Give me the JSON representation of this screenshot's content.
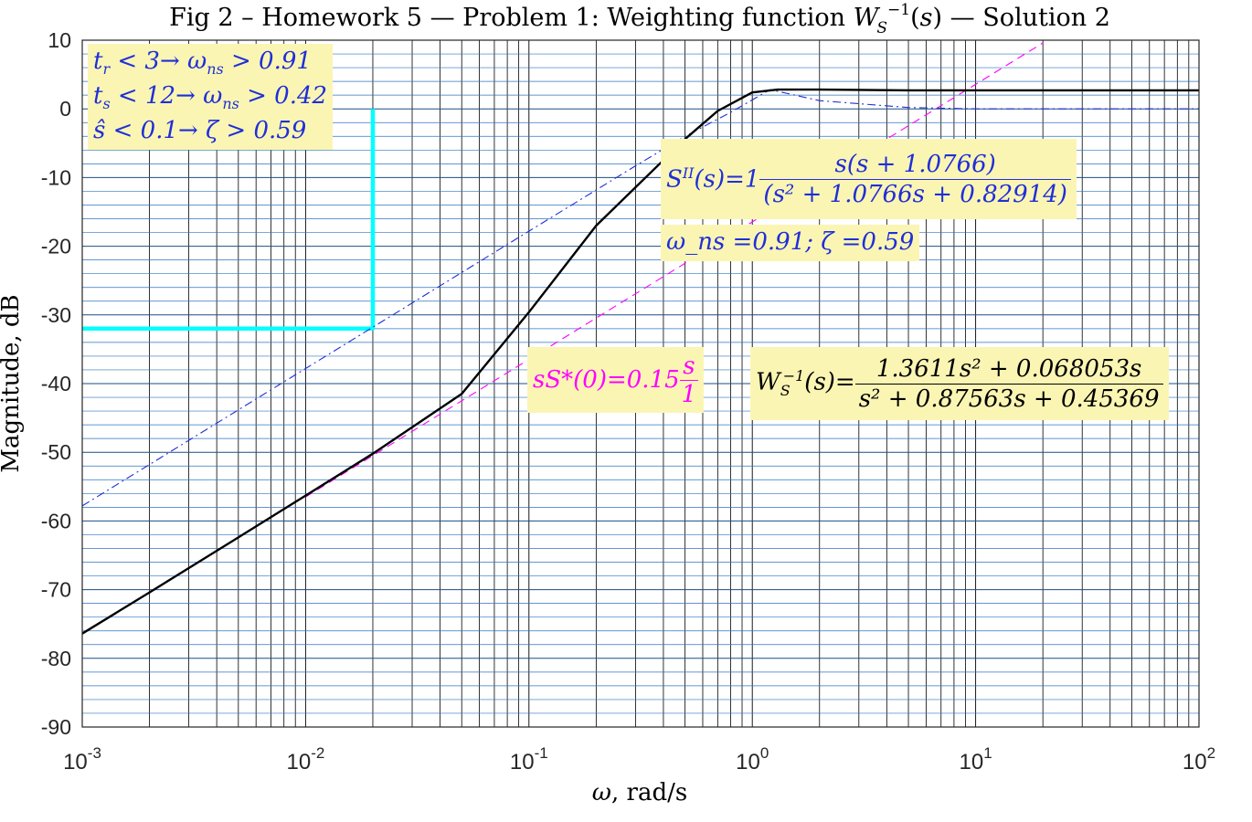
{
  "chart_data": {
    "type": "line",
    "title": "Fig 2 – Homework 5 — Problem 1: Weighting function W_S^{-1}(s) — Solution 2",
    "xlabel": "ω,  rad/s",
    "ylabel": "Magnitude, dB",
    "xscale": "log",
    "xlim": [
      0.001,
      100
    ],
    "ylim": [
      -90,
      10
    ],
    "grid": true,
    "x_tick_labels": [
      {
        "base": "10",
        "exp": "-3"
      },
      {
        "base": "10",
        "exp": "-2"
      },
      {
        "base": "10",
        "exp": "-1"
      },
      {
        "base": "10",
        "exp": "0"
      },
      {
        "base": "10",
        "exp": "1"
      },
      {
        "base": "10",
        "exp": "2"
      }
    ],
    "y_tick_labels": [
      "10",
      "0",
      "-10",
      "-20",
      "-30",
      "-40",
      "-50",
      "-60",
      "-70",
      "-80",
      "-90"
    ],
    "series": [
      {
        "style": "solid",
        "color": "#000000",
        "x": [
          0.001,
          0.002,
          0.005,
          0.01,
          0.02,
          0.05,
          0.1,
          0.2,
          0.5,
          0.7,
          1,
          1.3,
          2,
          5,
          10,
          100
        ],
        "values": [
          -76.4,
          -70.4,
          -62.4,
          -56.3,
          -50.2,
          -41.5,
          -29.6,
          -17,
          -4.4,
          -0.3,
          2.4,
          2.8,
          2.8,
          2.7,
          2.7,
          2.7
        ]
      },
      {
        "style": "dashdot",
        "color": "#1f2fd8",
        "x": [
          0.001,
          0.01,
          0.1,
          0.3,
          0.5,
          0.8,
          1.2,
          2,
          5,
          10,
          100
        ],
        "values": [
          -57.8,
          -37.8,
          -17.8,
          -8.3,
          -4.0,
          -0.5,
          2.8,
          1.2,
          0.2,
          0,
          0
        ]
      },
      {
        "style": "dashed",
        "color": "#ff00ff",
        "x": [
          0.01,
          20
        ],
        "values": [
          -56.5,
          9.6
        ]
      },
      {
        "style": "solid-thick",
        "color": "#00ffff",
        "x": [
          0.001,
          0.02,
          0.02
        ],
        "values": [
          -32,
          -32,
          0
        ]
      }
    ]
  },
  "annotations": {
    "specs": [
      "t_r < 3→ ω_ns > 0.91",
      "t_s < 12→ ω_ns > 0.42",
      "ŝ < 0.1→ ζ > 0.59"
    ],
    "sii_lhs": "S^{II}(s)=1",
    "sii_num": "s(s + 1.0766)",
    "sii_den": "(s² + 1.0766s + 0.82914)",
    "params": "ω_ns =0.91; ζ =0.59",
    "lowfreq_lhs": "sS*(0)=0.15",
    "lowfreq_num": "s",
    "lowfreq_den": "1",
    "ws_lhs": "W_S^{-1}(s)=",
    "ws_num": "1.3611s² + 0.068053s",
    "ws_den": "s² + 0.87563s + 0.45369"
  }
}
